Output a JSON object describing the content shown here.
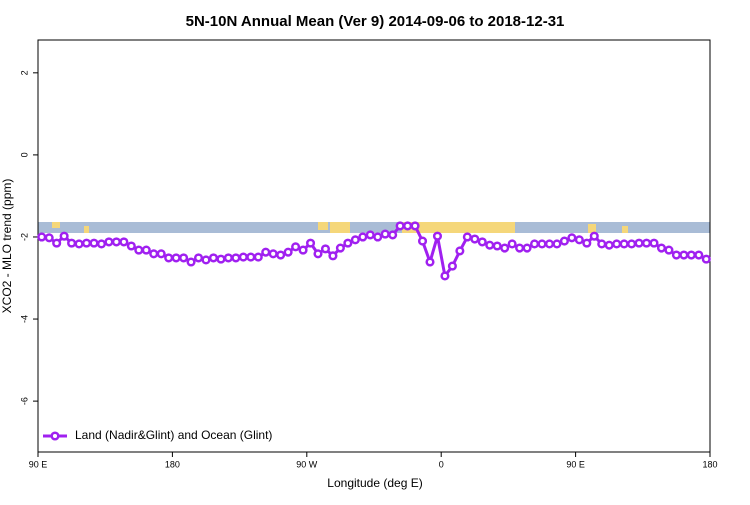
{
  "chart_data": {
    "type": "line",
    "title": "5N-10N Annual Mean (Ver 9)   2014-09-06 to 2018-12-31",
    "x_label": "Longitude (deg E)",
    "y_label": "XCO2 - MLO trend (ppm)",
    "x": [
      92.5,
      97.5,
      102.5,
      107.5,
      112.5,
      117.5,
      122.5,
      127.5,
      132.5,
      137.5,
      142.5,
      147.5,
      152.5,
      157.5,
      162.5,
      167.5,
      172.5,
      177.5,
      182.5,
      187.5,
      192.5,
      197.5,
      202.5,
      207.5,
      212.5,
      217.5,
      222.5,
      227.5,
      232.5,
      237.5,
      242.5,
      247.5,
      252.5,
      257.5,
      262.5,
      267.5,
      272.5,
      277.5,
      282.5,
      287.5,
      292.5,
      297.5,
      302.5,
      307.5,
      312.5,
      317.5,
      322.5,
      327.5,
      332.5,
      337.5,
      342.5,
      347.5,
      352.5,
      357.5,
      362.5,
      367.5,
      372.5,
      377.5,
      382.5,
      387.5,
      392.5,
      397.5,
      402.5,
      407.5,
      412.5,
      417.5,
      422.5,
      427.5,
      432.5,
      437.5,
      442.5,
      447.5,
      452.5,
      457.5,
      462.5,
      467.5,
      472.5,
      477.5,
      482.5,
      487.5,
      492.5,
      497.5,
      502.5,
      507.5,
      512.5,
      517.5,
      522.5,
      527.5,
      532.5,
      537.5
    ],
    "series": [
      {
        "name": "Land (Nadir&Glint) and Ocean (Glint)",
        "color": "#a020f0",
        "values": [
          -2.0,
          -2.02,
          -2.15,
          -1.98,
          -2.15,
          -2.17,
          -2.15,
          -2.15,
          -2.17,
          -2.12,
          -2.12,
          -2.12,
          -2.22,
          -2.32,
          -2.32,
          -2.41,
          -2.41,
          -2.51,
          -2.51,
          -2.51,
          -2.61,
          -2.51,
          -2.56,
          -2.51,
          -2.54,
          -2.51,
          -2.51,
          -2.49,
          -2.49,
          -2.49,
          -2.37,
          -2.41,
          -2.44,
          -2.37,
          -2.24,
          -2.32,
          -2.15,
          -2.41,
          -2.29,
          -2.46,
          -2.27,
          -2.15,
          -2.07,
          -2.0,
          -1.95,
          -2.0,
          -1.93,
          -1.95,
          -1.73,
          -1.73,
          -1.73,
          -2.1,
          -2.61,
          -1.98,
          -2.95,
          -2.71,
          -2.34,
          -2.0,
          -2.05,
          -2.12,
          -2.2,
          -2.22,
          -2.27,
          -2.17,
          -2.27,
          -2.27,
          -2.17,
          -2.17,
          -2.17,
          -2.17,
          -2.1,
          -2.02,
          -2.07,
          -2.15,
          -1.98,
          -2.17,
          -2.2,
          -2.17,
          -2.17,
          -2.17,
          -2.15,
          -2.15,
          -2.15,
          -2.27,
          -2.32,
          -2.44,
          -2.44,
          -2.44,
          -2.44,
          -2.54
        ]
      }
    ],
    "xlim": [
      90,
      540
    ],
    "xticks": [
      {
        "value": 90,
        "label": "90 E"
      },
      180,
      {
        "value": 270,
        "label": "90 W"
      },
      {
        "value": 360,
        "label": "0"
      },
      {
        "value": 450,
        "label": "90 E"
      },
      {
        "value": 540,
        "label": "180"
      }
    ],
    "ylim": [
      -7.24,
      2.8
    ],
    "yticks": [
      -6,
      -4,
      -2,
      0,
      2
    ],
    "legend": "bottom-left"
  }
}
